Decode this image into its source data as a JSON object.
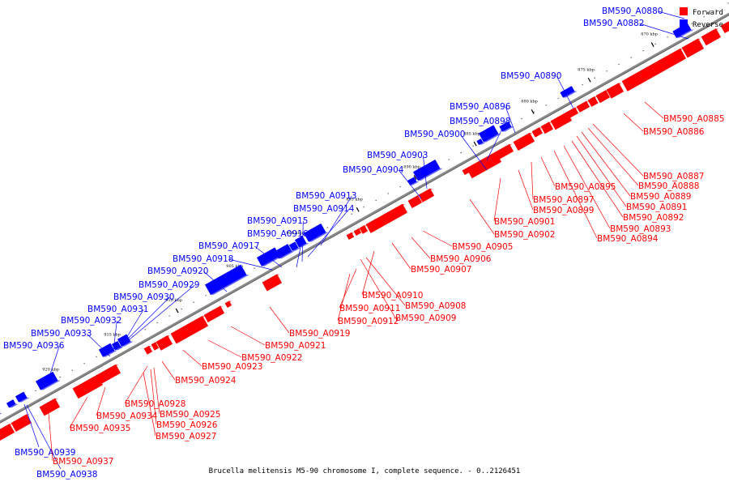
{
  "caption": "Brucella melitensis M5-90 chromosome I, complete sequence. - 0..2126451",
  "legend": [
    {
      "label": "Forward",
      "color": "#ff0000"
    },
    {
      "label": "Reverse",
      "color": "#0000ff"
    }
  ],
  "colors": {
    "forward": "#ff0000",
    "reverse": "#0000ff",
    "backbone": "#666666"
  },
  "ticks": [
    "870 kbp",
    "875 kbp",
    "880 kbp",
    "885 kbp",
    "890 kbp",
    "895 kbp",
    "900 kbp",
    "905 kbp",
    "910 kbp",
    "915 kbp",
    "920 kbp"
  ],
  "reverse_labels": [
    "BM590_A0880",
    "BM590_A0882",
    "BM590_A0890",
    "BM590_A0896",
    "BM590_A0898",
    "BM590_A0900",
    "BM590_A0903",
    "BM590_A0904",
    "BM590_A0913",
    "BM590_A0914",
    "BM590_A0915",
    "BM590_A0916",
    "BM590_A0917",
    "BM590_A0918",
    "BM590_A0920",
    "BM590_A0929",
    "BM590_A0930",
    "BM590_A0931",
    "BM590_A0932",
    "BM590_A0933",
    "BM590_A0936",
    "BM590_A0939",
    "BM590_A0938"
  ],
  "forward_labels": [
    "BM590_A0885",
    "BM590_A0886",
    "BM590_A0887",
    "BM590_A0888",
    "BM590_A0889",
    "BM590_A0891",
    "BM590_A0892",
    "BM590_A0893",
    "BM590_A0894",
    "BM590_A0895",
    "BM590_A0897",
    "BM590_A0899",
    "BM590_A0901",
    "BM590_A0902",
    "BM590_A0905",
    "BM590_A0906",
    "BM590_A0907",
    "BM590_A0910",
    "BM590_A0908",
    "BM590_A0909",
    "BM590_A0911",
    "BM590_A0912",
    "BM590_A0919",
    "BM590_A0921",
    "BM590_A0922",
    "BM590_A0923",
    "BM590_A0924",
    "BM590_A0928",
    "BM590_A0925",
    "BM590_A0926",
    "BM590_A0927",
    "BM590_A0934",
    "BM590_A0935",
    "BM590_A0937"
  ]
}
